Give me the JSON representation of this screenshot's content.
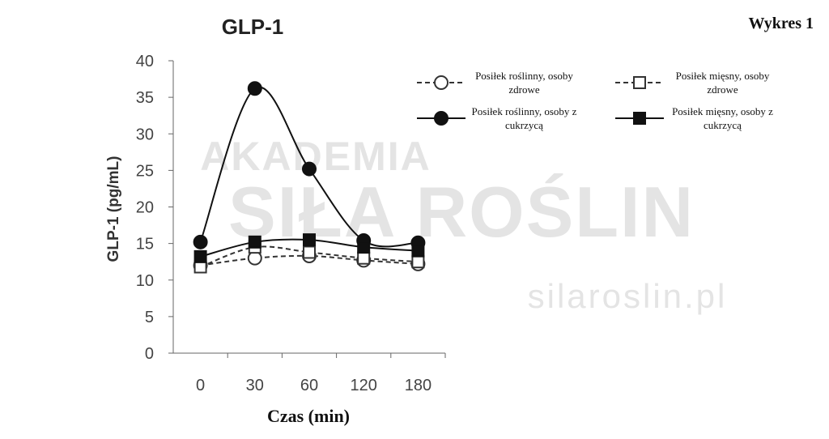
{
  "chart_data": {
    "type": "line",
    "title": "GLP-1",
    "corner_label": "Wykres 1",
    "watermark": [
      "AKADEMIA",
      "SIŁA ROŚLIN",
      "silaroslin.pl"
    ],
    "x_label": "Czas (min)",
    "y_label": "GLP-1 (pg/mL)",
    "categories": [
      "0",
      "30",
      "60",
      "120",
      "180"
    ],
    "ylim": [
      0,
      40
    ],
    "yticks": [
      0,
      5,
      10,
      15,
      20,
      25,
      30,
      35,
      40
    ],
    "series": [
      {
        "name": "Posiłek roślinny, osoby zdrowe",
        "color": "#333333",
        "dash": true,
        "marker": "circle-open",
        "values": [
          12,
          13,
          13.3,
          12.7,
          12.2
        ]
      },
      {
        "name": "Posiłek mięsny, osoby zdrowe",
        "color": "#333333",
        "dash": true,
        "marker": "square-open",
        "values": [
          11.8,
          14.5,
          13.8,
          13,
          12.5
        ]
      },
      {
        "name": "Posiłek roślinny, osoby z cukrzycą",
        "color": "#111111",
        "dash": false,
        "marker": "circle-filled",
        "values": [
          15.2,
          36.2,
          25.2,
          15.4,
          15.1
        ]
      },
      {
        "name": "Posiłek mięsny, osoby z cukrzycą",
        "color": "#111111",
        "dash": false,
        "marker": "square-filled",
        "values": [
          13.2,
          15.2,
          15.5,
          14.5,
          14.0
        ]
      }
    ]
  }
}
